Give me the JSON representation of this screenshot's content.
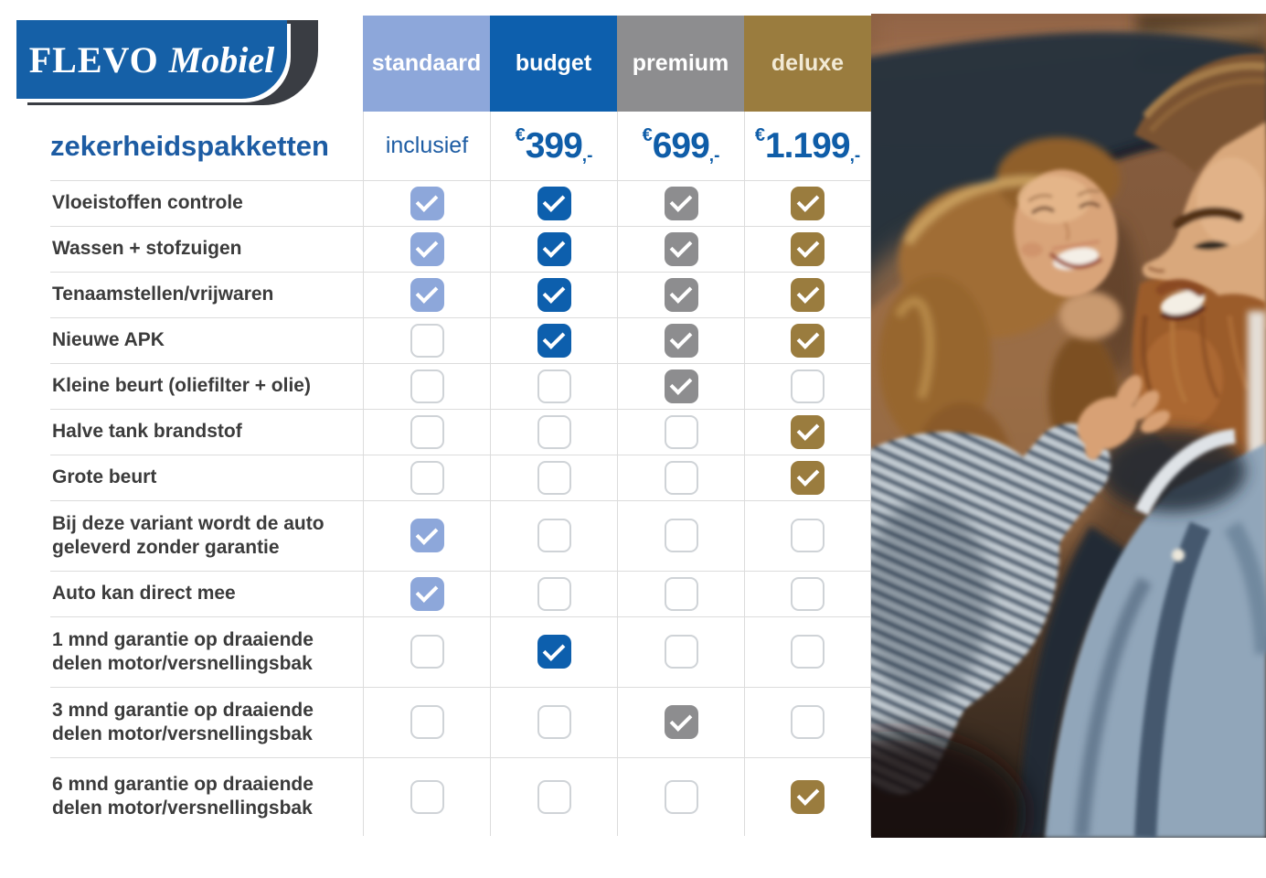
{
  "logo": {
    "primary": "FLEVO",
    "secondary": "Mobiel"
  },
  "title": "zekerheidspakketten",
  "table": {
    "columns": [
      {
        "id": "standaard",
        "label": "standaard",
        "color": "#8da7da",
        "label_color": "#ffffff",
        "price": {
          "text": "inclusief"
        }
      },
      {
        "id": "budget",
        "label": "budget",
        "color": "#0d5fad",
        "label_color": "#ffffff",
        "price": {
          "currency": "€",
          "amount": "399",
          "suffix": ",-"
        }
      },
      {
        "id": "premium",
        "label": "premium",
        "color": "#8d8d8f",
        "label_color": "#ffffff",
        "price": {
          "currency": "€",
          "amount": "699",
          "suffix": ",-"
        }
      },
      {
        "id": "deluxe",
        "label": "deluxe",
        "color": "#9a7c3e",
        "label_color": "#f2ead5",
        "price": {
          "currency": "€",
          "amount": "1.199",
          "suffix": ",-"
        }
      }
    ],
    "rows": [
      {
        "label": "Vloeistoffen controle",
        "checks": [
          true,
          true,
          true,
          true
        ]
      },
      {
        "label": "Wassen + stofzuigen",
        "checks": [
          true,
          true,
          true,
          true
        ]
      },
      {
        "label": "Tenaamstellen/vrijwaren",
        "checks": [
          true,
          true,
          true,
          true
        ]
      },
      {
        "label": "Nieuwe APK",
        "checks": [
          false,
          true,
          true,
          true
        ]
      },
      {
        "label": "Kleine beurt (oliefilter + olie)",
        "checks": [
          false,
          false,
          true,
          false
        ]
      },
      {
        "label": "Halve tank brandstof",
        "checks": [
          false,
          false,
          false,
          true
        ]
      },
      {
        "label": "Grote beurt",
        "checks": [
          false,
          false,
          false,
          true
        ]
      },
      {
        "label": "Bij deze variant wordt de auto geleverd zonder garantie",
        "checks": [
          true,
          false,
          false,
          false
        ],
        "tall": true
      },
      {
        "label": "Auto kan direct mee",
        "checks": [
          true,
          false,
          false,
          false
        ]
      },
      {
        "label": "1 mnd garantie op draaiende delen motor/versnellingsbak",
        "checks": [
          false,
          true,
          false,
          false
        ],
        "tall": true
      },
      {
        "label": "3 mnd garantie op draaiende delen motor/versnellingsbak",
        "checks": [
          false,
          false,
          true,
          false
        ],
        "tall": true
      },
      {
        "label": "6 mnd garantie op draaiende delen motor/versnellingsbak",
        "checks": [
          false,
          false,
          false,
          true
        ],
        "tall": true
      }
    ]
  },
  "photo": {
    "description": "Smiling couple inside a car: bearded man in light denim shirt in the foreground, laughing woman with wavy blonde hair and striped top reaching a hand toward him"
  },
  "colors": {
    "title_blue": "#1d5ca3",
    "price_blue": "#0f5da8",
    "label_dark": "#3b3b3b",
    "grid_line": "#dcdcdc",
    "unchecked_border": "#cfd3d7",
    "logo_blue": "#1560a7",
    "logo_swoosh": "#3a3d43"
  }
}
